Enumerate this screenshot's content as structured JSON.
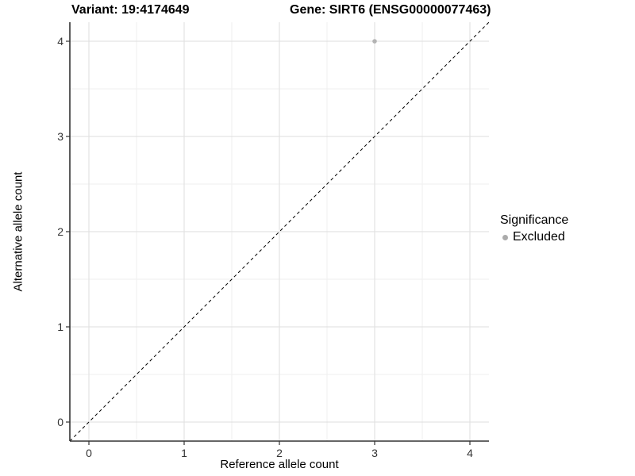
{
  "title": {
    "variant": "Variant: 19:4174649",
    "gene": "Gene: SIRT6 (ENSG00000077463)"
  },
  "chart_data": {
    "type": "scatter",
    "title": "Variant: 19:4174649   Gene: SIRT6 (ENSG00000077463)",
    "xlabel": "Reference allele count",
    "ylabel": "Alternative allele count",
    "xlim": [
      -0.2,
      4.2
    ],
    "ylim": [
      -0.2,
      4.2
    ],
    "xticks": [
      0,
      1,
      2,
      3,
      4
    ],
    "yticks": [
      0,
      1,
      2,
      3,
      4
    ],
    "xticks_minor": [
      0.5,
      1.5,
      2.5,
      3.5
    ],
    "yticks_minor": [
      0.5,
      1.5,
      2.5,
      3.5
    ],
    "grid": true,
    "points": [
      {
        "x": 3,
        "y": 4,
        "series": "Excluded"
      }
    ],
    "identity_line": {
      "slope": 1,
      "intercept": 0,
      "style": "dashed"
    },
    "legend": {
      "title": "Significance",
      "position": "right",
      "entries": [
        {
          "label": "Excluded",
          "color": "#ababab"
        }
      ]
    }
  },
  "colors": {
    "background": "#ffffff",
    "grid_major": "#e3e3e3",
    "grid_minor": "#efefef",
    "axis_line": "#333333",
    "tick_label": "#333333",
    "point": "#b3b3b3",
    "identity_line": "#000000"
  }
}
